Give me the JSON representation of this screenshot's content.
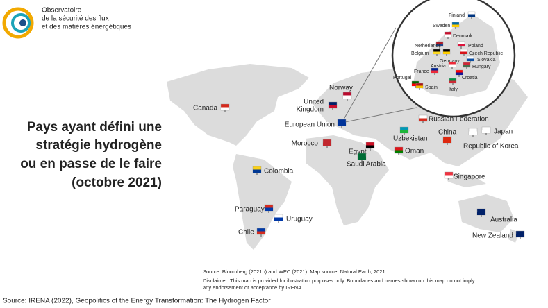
{
  "header": {
    "logo_lines": [
      "Observatoire",
      "de la sécurité des flux",
      "et des matières énergétiques"
    ]
  },
  "title_lines": [
    "Pays ayant défini une",
    "stratégie hydrogène",
    "ou en passe de le faire",
    "(octobre 2021)"
  ],
  "map": {
    "countries": [
      {
        "name": "Canada"
      },
      {
        "name": "United",
        "name2": "Kingdom"
      },
      {
        "name": "Norway"
      },
      {
        "name": "European Union"
      },
      {
        "name": "Morocco"
      },
      {
        "name": "Egypt"
      },
      {
        "name": "Saudi Arabia"
      },
      {
        "name": "Oman"
      },
      {
        "name": "Uzbekistan"
      },
      {
        "name": "Russian Federation"
      },
      {
        "name": "China"
      },
      {
        "name": "Japan"
      },
      {
        "name": "Republic of Korea"
      },
      {
        "name": "Singapore"
      },
      {
        "name": "Colombia"
      },
      {
        "name": "Paraguay"
      },
      {
        "name": "Uruguay"
      },
      {
        "name": "Chile"
      },
      {
        "name": "Australia"
      },
      {
        "name": "New Zealand"
      }
    ],
    "inset_countries": [
      {
        "name": "Finland"
      },
      {
        "name": "Sweden"
      },
      {
        "name": "Denmark"
      },
      {
        "name": "Netherlands"
      },
      {
        "name": "Poland"
      },
      {
        "name": "Belgium"
      },
      {
        "name": "Czech Republic"
      },
      {
        "name": "Germany"
      },
      {
        "name": "Slovakia"
      },
      {
        "name": "Austria"
      },
      {
        "name": "Hungary"
      },
      {
        "name": "France"
      },
      {
        "name": "Croatia"
      },
      {
        "name": "Portugal"
      },
      {
        "name": "Spain"
      },
      {
        "name": "Italy"
      }
    ],
    "notes": [
      "Source: Bloomberg (2021b) and WEC (2021). Map source: Natural Earth, 2021",
      "Disclaimer: This map is provided for illustration purposes only. Boundaries and names shown on this map do not imply",
      "any endorsement or acceptance by IRENA."
    ]
  },
  "footer": "Source: IRENA (2022), Geopolitics of the Energy Transformation: The Hydrogen Factor"
}
